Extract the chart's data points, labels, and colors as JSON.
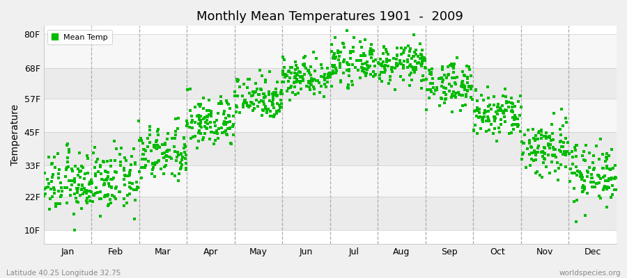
{
  "title": "Monthly Mean Temperatures 1901  -  2009",
  "ylabel": "Temperature",
  "background_color": "#f0f0f0",
  "plot_bg_color": "#ffffff",
  "dot_color": "#00bb00",
  "dot_size": 7,
  "legend_label": "Mean Temp",
  "ytick_labels": [
    "10F",
    "22F",
    "33F",
    "45F",
    "57F",
    "68F",
    "80F"
  ],
  "ytick_values": [
    10,
    22,
    33,
    45,
    57,
    68,
    80
  ],
  "ylim": [
    5,
    83
  ],
  "months": [
    "Jan",
    "Feb",
    "Mar",
    "Apr",
    "May",
    "Jun",
    "Jul",
    "Aug",
    "Sep",
    "Oct",
    "Nov",
    "Dec"
  ],
  "month_positions": [
    0.5,
    1.5,
    2.5,
    3.5,
    4.5,
    5.5,
    6.5,
    7.5,
    8.5,
    9.5,
    10.5,
    11.5
  ],
  "dashed_line_positions": [
    1.0,
    2.0,
    3.0,
    4.0,
    5.0,
    6.0,
    7.0,
    8.0,
    9.0,
    10.0,
    11.0
  ],
  "xlim": [
    0,
    12
  ],
  "footnote_left": "Latitude 40.25 Longitude 32.75",
  "footnote_right": "worldspecies.org",
  "band_colors": [
    "#ebebeb",
    "#f7f7f7"
  ],
  "mean_temps_by_month": {
    "1": {
      "mean": 26.5,
      "std": 5.5
    },
    "2": {
      "mean": 27.5,
      "std": 5.5
    },
    "3": {
      "mean": 37.0,
      "std": 5.0
    },
    "4": {
      "mean": 48.5,
      "std": 4.5
    },
    "5": {
      "mean": 57.5,
      "std": 4.0
    },
    "6": {
      "mean": 65.0,
      "std": 3.5
    },
    "7": {
      "mean": 69.5,
      "std": 3.5
    },
    "8": {
      "mean": 69.5,
      "std": 3.5
    },
    "9": {
      "mean": 62.0,
      "std": 4.0
    },
    "10": {
      "mean": 51.0,
      "std": 4.5
    },
    "11": {
      "mean": 39.5,
      "std": 5.5
    },
    "12": {
      "mean": 30.5,
      "std": 5.5
    }
  }
}
